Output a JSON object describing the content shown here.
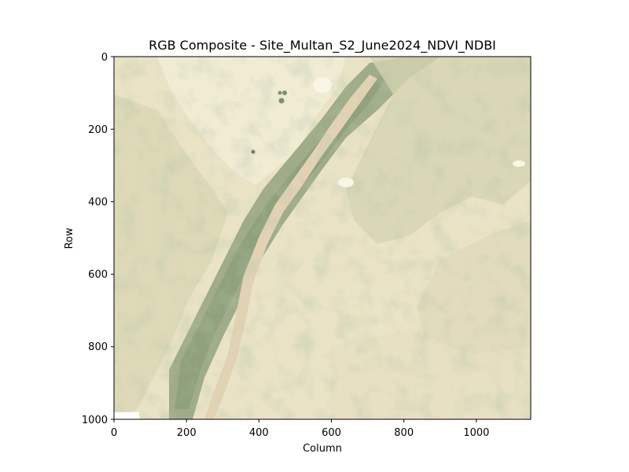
{
  "figure": {
    "title": "RGB Composite - Site_Multan_S2_June2024_NDVI_NDBI",
    "xlabel": "Column",
    "ylabel": "Row",
    "x_ticks": [
      "0",
      "200",
      "400",
      "600",
      "800",
      "1000"
    ],
    "y_ticks": [
      "0",
      "200",
      "400",
      "600",
      "800",
      "1000"
    ],
    "x_range": [
      0,
      1150
    ],
    "y_range": [
      0,
      1000
    ],
    "colors": {
      "background_land": "#efe6c8",
      "bright_desert": "#f7f0d8",
      "vegetation": "#8fa07a",
      "dark_vegetation": "#7d9170",
      "river_sand": "#e6d3b4"
    }
  }
}
